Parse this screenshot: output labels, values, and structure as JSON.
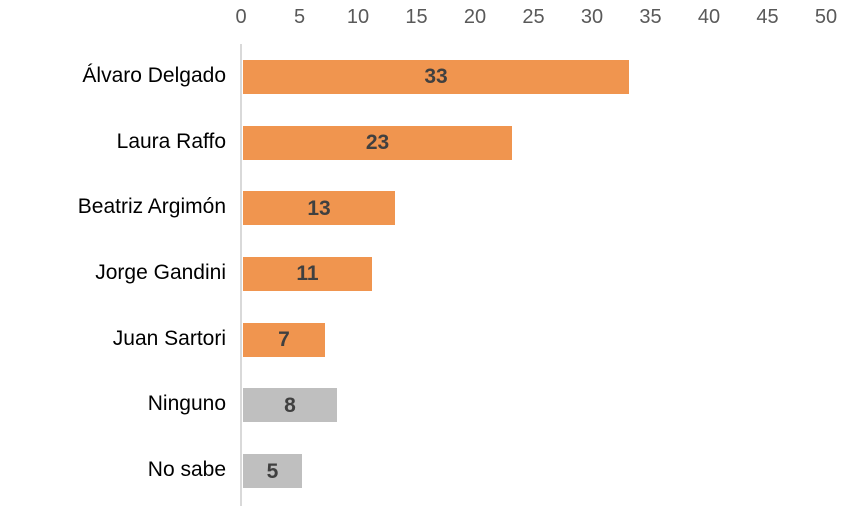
{
  "chart_data": {
    "type": "bar",
    "orientation": "horizontal",
    "title": "",
    "xlabel": "",
    "ylabel": "",
    "categories": [
      "Álvaro Delgado",
      "Laura Raffo",
      "Beatriz Argimón",
      "Jorge Gandini",
      "Juan Sartori",
      "Ninguno",
      "No sabe"
    ],
    "values": [
      33,
      23,
      13,
      11,
      7,
      8,
      5
    ],
    "bar_colors": [
      "#F0954F",
      "#F0954F",
      "#F0954F",
      "#F0954F",
      "#F0954F",
      "#BFBFBF",
      "#BFBFBF"
    ],
    "data_labels": "inside-center",
    "xlim": [
      0,
      50
    ],
    "x_ticks": [
      0,
      5,
      10,
      15,
      20,
      25,
      30,
      35,
      40,
      45,
      50
    ],
    "axis_position": "top",
    "grid": "off",
    "legend": "none",
    "colors": {
      "orange_bar": "#F0954F",
      "gray_bar": "#BFBFBF",
      "data_label": "#404040",
      "tick_label": "#595959",
      "category_label": "#000000",
      "axis_line": "#D9D9D9",
      "background": "#FFFFFF"
    }
  }
}
